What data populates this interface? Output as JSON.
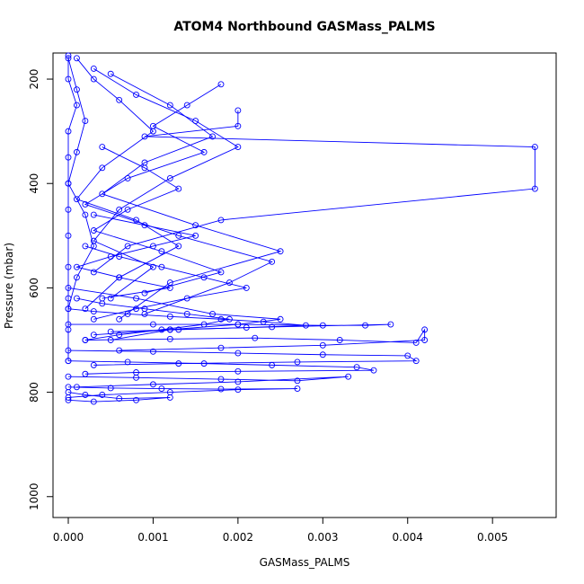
{
  "chart_data": {
    "type": "scatter",
    "title": "ATOM4 Northbound GASMass_PALMS",
    "xlabel": "GASMass_PALMS",
    "ylabel": "Pressure (mbar)",
    "xlim": [
      -0.00018,
      0.00575
    ],
    "ylim": [
      150,
      1040
    ],
    "y_reversed": true,
    "grid": false,
    "xticks": [
      0,
      0.001,
      0.002,
      0.003,
      0.004,
      0.005
    ],
    "xtick_labels": [
      "0.000",
      "0.001",
      "0.002",
      "0.003",
      "0.004",
      "0.005"
    ],
    "yticks": [
      200,
      400,
      600,
      800,
      1000
    ],
    "ytick_labels": [
      "200",
      "400",
      "600",
      "800",
      "1000"
    ],
    "series": [
      {
        "x": [
          0.0,
          0.0,
          0.0001,
          0.0,
          0.0,
          0.0,
          0.0,
          0.0,
          0.0,
          0.0,
          0.0,
          0.0
        ],
        "y": [
          155,
          200,
          250,
          300,
          350,
          400,
          450,
          500,
          560,
          620,
          680,
          740
        ]
      },
      {
        "x": [
          0.0001,
          0.0003,
          0.0006,
          0.001,
          0.0004,
          0.0001,
          0.0008,
          0.0013,
          0.0006,
          0.0002
        ],
        "y": [
          160,
          200,
          240,
          300,
          370,
          430,
          470,
          520,
          580,
          640
        ]
      },
      {
        "x": [
          0.0003,
          0.0008,
          0.0015,
          0.002,
          0.0012,
          0.0006,
          0.0003,
          0.001,
          0.0005
        ],
        "y": [
          180,
          230,
          280,
          330,
          390,
          450,
          510,
          560,
          620
        ]
      },
      {
        "x": [
          0.0005,
          0.0012,
          0.0017,
          0.0009,
          0.0004,
          0.0015,
          0.0025,
          0.0012,
          0.0006
        ],
        "y": [
          190,
          250,
          310,
          360,
          420,
          480,
          530,
          590,
          660
        ]
      },
      {
        "x": [
          0.002,
          0.002,
          0.0009,
          0.0055,
          0.0055,
          0.0018,
          0.0007,
          0.0003
        ],
        "y": [
          260,
          290,
          310,
          330,
          410,
          470,
          520,
          570
        ]
      },
      {
        "x": [
          0.0018,
          0.0014,
          0.001,
          0.0016,
          0.0007,
          0.0002,
          0.0013,
          0.0024,
          0.0019,
          0.0009
        ],
        "y": [
          210,
          250,
          290,
          340,
          390,
          440,
          500,
          550,
          590,
          650
        ]
      },
      {
        "x": [
          0.0,
          0.0008,
          0.0017,
          0.0025,
          0.002,
          0.0012,
          0.0005
        ],
        "y": [
          600,
          620,
          650,
          660,
          670,
          680,
          700
        ]
      },
      {
        "x": [
          0.0,
          0.001,
          0.002,
          0.003,
          0.0035,
          0.0038,
          0.0024,
          0.0012,
          0.0003
        ],
        "y": [
          670,
          670,
          670,
          672,
          672,
          670,
          675,
          680,
          690
        ]
      },
      {
        "x": [
          0.0002,
          0.0012,
          0.0022,
          0.0032,
          0.0041,
          0.0042,
          0.0042,
          0.003,
          0.0018,
          0.0006
        ],
        "y": [
          700,
          698,
          696,
          700,
          705,
          680,
          700,
          710,
          715,
          720
        ]
      },
      {
        "x": [
          0.0,
          0.001,
          0.002,
          0.003,
          0.004,
          0.0041,
          0.0027,
          0.0013,
          0.0003
        ],
        "y": [
          720,
          722,
          725,
          728,
          730,
          740,
          742,
          745,
          748
        ]
      },
      {
        "x": [
          0.0,
          0.0007,
          0.0016,
          0.0024,
          0.0034,
          0.0036,
          0.002,
          0.0008,
          0.0002
        ],
        "y": [
          740,
          742,
          745,
          748,
          752,
          758,
          760,
          762,
          765
        ]
      },
      {
        "x": [
          0.0,
          0.0008,
          0.0018,
          0.0027,
          0.0033,
          0.002,
          0.001,
          0.0001
        ],
        "y": [
          770,
          772,
          775,
          778,
          770,
          780,
          785,
          790
        ]
      },
      {
        "x": [
          0.0,
          0.0005,
          0.0011,
          0.0018,
          0.0027,
          0.002,
          0.0012,
          0.0004,
          0.0
        ],
        "y": [
          790,
          792,
          793,
          794,
          793,
          795,
          800,
          805,
          810
        ]
      },
      {
        "x": [
          0.0,
          0.0002,
          0.0006,
          0.0012,
          0.0008,
          0.0003,
          0.0
        ],
        "y": [
          800,
          805,
          812,
          810,
          815,
          818,
          815
        ]
      },
      {
        "x": [
          0.0001,
          0.0004,
          0.0009,
          0.0014,
          0.0019,
          0.0016,
          0.0011,
          0.0006,
          0.0002
        ],
        "y": [
          620,
          630,
          640,
          650,
          660,
          670,
          680,
          690,
          700
        ]
      },
      {
        "x": [
          0.0,
          0.0003,
          0.0007,
          0.0012,
          0.0018,
          0.0023,
          0.0028,
          0.0021,
          0.0013,
          0.0005
        ],
        "y": [
          640,
          645,
          650,
          655,
          660,
          665,
          672,
          676,
          680,
          684
        ]
      },
      {
        "x": [
          0.0003,
          0.0009,
          0.0015,
          0.001,
          0.0005,
          0.0001,
          0.0006,
          0.0012,
          0.0004
        ],
        "y": [
          460,
          480,
          500,
          520,
          540,
          560,
          580,
          600,
          620
        ]
      },
      {
        "x": [
          0.0002,
          0.0006,
          0.0011,
          0.0016,
          0.0021,
          0.0014,
          0.0008,
          0.0003
        ],
        "y": [
          520,
          540,
          560,
          580,
          600,
          620,
          640,
          660
        ]
      },
      {
        "x": [
          0.0,
          0.0001,
          0.0002,
          0.0001,
          0.0,
          0.0002,
          0.0003,
          0.0001,
          0.0
        ],
        "y": [
          160,
          220,
          280,
          340,
          400,
          460,
          520,
          580,
          640
        ]
      },
      {
        "x": [
          0.0004,
          0.0009,
          0.0013,
          0.0007,
          0.0003,
          0.0011,
          0.0018,
          0.0009
        ],
        "y": [
          330,
          370,
          410,
          450,
          490,
          530,
          570,
          610
        ]
      }
    ]
  }
}
